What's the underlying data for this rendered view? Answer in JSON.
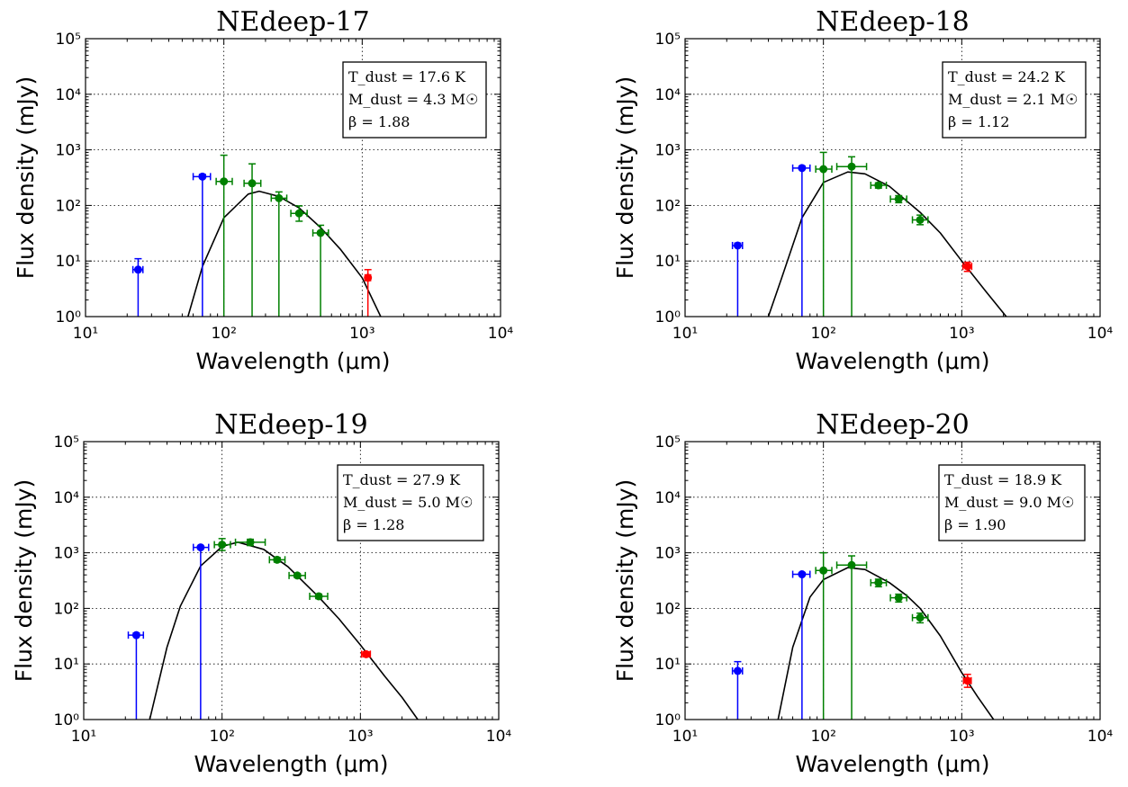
{
  "chart_data": [
    {
      "type": "scatter",
      "title": "NEdeep-17",
      "xlabel": "Wavelength (μm)",
      "ylabel": "Flux density (mJy)",
      "xscale": "log",
      "yscale": "log",
      "xlim": [
        10,
        10000
      ],
      "ylim": [
        1,
        100000
      ],
      "xticks": [
        "10¹",
        "10²",
        "10³",
        "10⁴"
      ],
      "yticks": [
        "10⁰",
        "10¹",
        "10²",
        "10³",
        "10⁴",
        "10⁵"
      ],
      "grid": true,
      "annotation": [
        "T_dust = 17.6 K",
        "M_dust = 4.3 M☉",
        "β = 1.88"
      ],
      "series": [
        {
          "color": "#0000ff",
          "points": [
            {
              "x": 24,
              "y": 7,
              "xerr": [
                22,
                26
              ],
              "yerr": [
                1,
                11
              ]
            },
            {
              "x": 70,
              "y": 330,
              "xerr": [
                60,
                80
              ],
              "yerr": [
                1,
                360
              ]
            }
          ]
        },
        {
          "color": "#008000",
          "points": [
            {
              "x": 100,
              "y": 270,
              "xerr": [
                88,
                115
              ],
              "yerr": [
                1,
                800
              ]
            },
            {
              "x": 160,
              "y": 250,
              "xerr": [
                140,
                185
              ],
              "yerr": [
                1,
                560
              ]
            },
            {
              "x": 250,
              "y": 135,
              "xerr": [
                220,
                285
              ],
              "yerr": [
                1,
                175
              ]
            },
            {
              "x": 350,
              "y": 72,
              "xerr": [
                305,
                400
              ],
              "yerr": [
                52,
                98
              ]
            },
            {
              "x": 500,
              "y": 32,
              "xerr": [
                440,
                570
              ],
              "yerr": [
                1,
                44
              ]
            }
          ]
        },
        {
          "color": "#ff0000",
          "points": [
            {
              "x": 1100,
              "y": 5,
              "xerr": [
                1050,
                1150
              ],
              "yerr": [
                1,
                7
              ]
            }
          ]
        }
      ],
      "model": {
        "x": [
          55,
          70,
          100,
          150,
          180,
          250,
          350,
          500,
          700,
          1000,
          1360
        ],
        "y": [
          1,
          8,
          60,
          160,
          180,
          145,
          90,
          40,
          16,
          5,
          1
        ]
      }
    },
    {
      "type": "scatter",
      "title": "NEdeep-18",
      "xlabel": "Wavelength (μm)",
      "ylabel": "Flux density (mJy)",
      "xscale": "log",
      "yscale": "log",
      "xlim": [
        10,
        10000
      ],
      "ylim": [
        1,
        100000
      ],
      "xticks": [
        "10¹",
        "10²",
        "10³",
        "10⁴"
      ],
      "yticks": [
        "10⁰",
        "10¹",
        "10²",
        "10³",
        "10⁴",
        "10⁵"
      ],
      "grid": true,
      "annotation": [
        "T_dust = 24.2 K",
        "M_dust = 2.1 M☉",
        "β = 1.12"
      ],
      "series": [
        {
          "color": "#0000ff",
          "points": [
            {
              "x": 24,
              "y": 19,
              "xerr": [
                22,
                26
              ],
              "yerr": [
                1,
                21
              ]
            },
            {
              "x": 70,
              "y": 470,
              "xerr": [
                60,
                80
              ],
              "yerr": [
                1,
                510
              ]
            }
          ]
        },
        {
          "color": "#008000",
          "points": [
            {
              "x": 100,
              "y": 450,
              "xerr": [
                88,
                115
              ],
              "yerr": [
                1,
                900
              ]
            },
            {
              "x": 160,
              "y": 500,
              "xerr": [
                125,
                205
              ],
              "yerr": [
                1,
                750
              ]
            },
            {
              "x": 250,
              "y": 230,
              "xerr": [
                220,
                285
              ],
              "yerr": [
                205,
                255
              ]
            },
            {
              "x": 350,
              "y": 130,
              "xerr": [
                305,
                400
              ],
              "yerr": [
                112,
                150
              ]
            },
            {
              "x": 500,
              "y": 55,
              "xerr": [
                440,
                570
              ],
              "yerr": [
                45,
                67
              ]
            }
          ]
        },
        {
          "color": "#ff0000",
          "points": [
            {
              "x": 1100,
              "y": 8,
              "xerr": [
                1020,
                1180
              ],
              "yerr": [
                6.5,
                9.5
              ]
            }
          ]
        }
      ],
      "model": {
        "x": [
          40,
          50,
          70,
          100,
          150,
          200,
          300,
          500,
          700,
          1000,
          1500,
          2100
        ],
        "y": [
          1,
          5,
          60,
          260,
          400,
          370,
          220,
          75,
          32,
          10,
          2.8,
          1
        ]
      }
    },
    {
      "type": "scatter",
      "title": "NEdeep-19",
      "xlabel": "Wavelength (μm)",
      "ylabel": "Flux density (mJy)",
      "xscale": "log",
      "yscale": "log",
      "xlim": [
        10,
        10000
      ],
      "ylim": [
        1,
        100000
      ],
      "xticks": [
        "10¹",
        "10²",
        "10³",
        "10⁴"
      ],
      "yticks": [
        "10⁰",
        "10¹",
        "10²",
        "10³",
        "10⁴",
        "10⁵"
      ],
      "grid": true,
      "annotation": [
        "T_dust = 27.9 K",
        "M_dust = 5.0 M☉",
        "β = 1.28"
      ],
      "series": [
        {
          "color": "#0000ff",
          "points": [
            {
              "x": 24,
              "y": 33,
              "xerr": [
                21,
                27
              ],
              "yerr": [
                1,
                36
              ]
            },
            {
              "x": 70,
              "y": 1250,
              "xerr": [
                62,
                80
              ],
              "yerr": [
                1,
                1300
              ]
            }
          ]
        },
        {
          "color": "#008000",
          "points": [
            {
              "x": 100,
              "y": 1400,
              "xerr": [
                88,
                115
              ],
              "yerr": [
                1100,
                1800
              ]
            },
            {
              "x": 160,
              "y": 1550,
              "xerr": [
                125,
                205
              ],
              "yerr": [
                1350,
                1750
              ]
            },
            {
              "x": 250,
              "y": 750,
              "xerr": [
                220,
                285
              ],
              "yerr": [
                680,
                820
              ]
            },
            {
              "x": 350,
              "y": 390,
              "xerr": [
                305,
                400
              ],
              "yerr": [
                360,
                420
              ]
            },
            {
              "x": 500,
              "y": 165,
              "xerr": [
                430,
                580
              ],
              "yerr": [
                150,
                180
              ]
            }
          ]
        },
        {
          "color": "#ff0000",
          "points": [
            {
              "x": 1100,
              "y": 15,
              "xerr": [
                1020,
                1180
              ],
              "yerr": [
                13.5,
                16.5
              ]
            }
          ]
        }
      ],
      "model": {
        "x": [
          30,
          40,
          50,
          70,
          100,
          130,
          200,
          300,
          500,
          700,
          1000,
          1500,
          2000,
          2600
        ],
        "y": [
          1,
          20,
          110,
          580,
          1300,
          1550,
          1150,
          560,
          160,
          65,
          22,
          6,
          2.5,
          1
        ]
      }
    },
    {
      "type": "scatter",
      "title": "NEdeep-20",
      "xlabel": "Wavelength (μm)",
      "ylabel": "Flux density (mJy)",
      "xscale": "log",
      "yscale": "log",
      "xlim": [
        10,
        10000
      ],
      "ylim": [
        1,
        100000
      ],
      "xticks": [
        "10¹",
        "10²",
        "10³",
        "10⁴"
      ],
      "yticks": [
        "10⁰",
        "10¹",
        "10²",
        "10³",
        "10⁴",
        "10⁵"
      ],
      "grid": true,
      "annotation": [
        "T_dust = 18.9 K",
        "M_dust = 9.0 M☉",
        "β = 1.90"
      ],
      "series": [
        {
          "color": "#0000ff",
          "points": [
            {
              "x": 24,
              "y": 7.5,
              "xerr": [
                22,
                26
              ],
              "yerr": [
                1,
                11
              ]
            },
            {
              "x": 70,
              "y": 410,
              "xerr": [
                60,
                80
              ],
              "yerr": [
                1,
                440
              ]
            }
          ]
        },
        {
          "color": "#008000",
          "points": [
            {
              "x": 100,
              "y": 480,
              "xerr": [
                88,
                115
              ],
              "yerr": [
                1,
                1000
              ]
            },
            {
              "x": 160,
              "y": 600,
              "xerr": [
                125,
                205
              ],
              "yerr": [
                1,
                880
              ]
            },
            {
              "x": 250,
              "y": 290,
              "xerr": [
                220,
                285
              ],
              "yerr": [
                245,
                335
              ]
            },
            {
              "x": 350,
              "y": 155,
              "xerr": [
                305,
                400
              ],
              "yerr": [
                130,
                180
              ]
            },
            {
              "x": 500,
              "y": 68,
              "xerr": [
                440,
                570
              ],
              "yerr": [
                55,
                82
              ]
            }
          ]
        },
        {
          "color": "#ff0000",
          "points": [
            {
              "x": 1100,
              "y": 5,
              "xerr": [
                1030,
                1170
              ],
              "yerr": [
                3.8,
                6.5
              ]
            }
          ]
        }
      ],
      "model": {
        "x": [
          47,
          60,
          80,
          100,
          150,
          200,
          300,
          400,
          500,
          700,
          1000,
          1300,
          1700
        ],
        "y": [
          1,
          20,
          160,
          330,
          540,
          500,
          290,
          170,
          100,
          32,
          7,
          2.6,
          1
        ]
      }
    }
  ]
}
